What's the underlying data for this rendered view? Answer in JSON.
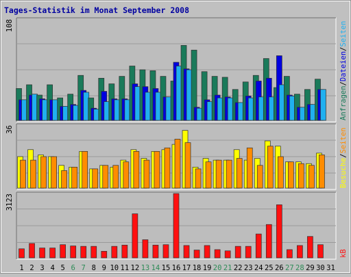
{
  "title": "Tages-Statistik im Monat September 2008",
  "colors": {
    "background": "#c0c0c0",
    "panel": "#bdbdbd",
    "grid": "#9a9a9a",
    "title": "#0000a0",
    "frame": "#808080",
    "anfragen": "#1a7a5a",
    "dateien": "#0000e0",
    "seiten_top": "#20b0f0",
    "besuche": "#ffff00",
    "seiten_mid": "#ff8c00",
    "kb": "#ff1010",
    "weekday_label": "#000000",
    "weekend_label": "#2e8b57"
  },
  "chart_data": {
    "type": "bar",
    "title": "Tages-Statistik im Monat September 2008",
    "categories": [
      "1",
      "2",
      "3",
      "4",
      "5",
      "6",
      "7",
      "8",
      "9",
      "10",
      "11",
      "12",
      "13",
      "14",
      "15",
      "16",
      "17",
      "18",
      "19",
      "20",
      "21",
      "22",
      "23",
      "24",
      "25",
      "26",
      "27",
      "28",
      "29",
      "30",
      "31"
    ],
    "weekend_days": [
      "6",
      "7",
      "13",
      "14",
      "20",
      "21",
      "27",
      "28"
    ],
    "panels": [
      {
        "ylabel_max": "108",
        "ylim": [
          0,
          108
        ],
        "legend": [
          {
            "label": "Anfragen",
            "color_key": "anfragen"
          },
          {
            "label": "Dateien",
            "color_key": "dateien"
          },
          {
            "label": "Seiten",
            "color_key": "seiten_top"
          }
        ],
        "separators": [
          "/",
          "/"
        ],
        "series": [
          {
            "name": "Anfragen",
            "color_key": "anfragen",
            "values": [
              34,
              38,
              27,
              38,
              24,
              28,
              48,
              24,
              45,
              39,
              47,
              58,
              54,
              53,
              47,
              42,
              80,
              75,
              52,
              47,
              46,
              33,
              41,
              48,
              66,
              35,
              47,
              28,
              33,
              44,
              null
            ]
          },
          {
            "name": "Dateien",
            "color_key": "dateien",
            "values": [
              22,
              27,
              23,
              22,
              15,
              17,
              32,
              13,
              31,
              23,
              23,
              39,
              36,
              34,
              25,
              62,
              55,
              14,
              22,
              27,
              25,
              19,
              26,
              42,
              45,
              69,
              27,
              14,
              17,
              33,
              null
            ]
          },
          {
            "name": "Seiten",
            "color_key": "seiten_top",
            "values": [
              22,
              28,
              22,
              22,
              15,
              16,
              30,
              12,
              20,
              22,
              22,
              36,
              30,
              30,
              25,
              58,
              54,
              13,
              20,
              24,
              24,
              19,
              24,
              25,
              25,
              38,
              26,
              14,
              17,
              33,
              null
            ]
          }
        ]
      },
      {
        "ylabel_max": "36",
        "ylim": [
          0,
          36
        ],
        "legend": [
          {
            "label": "Besuche",
            "color_key": "besuche"
          },
          {
            "label": "Seiten",
            "color_key": "seiten_mid"
          }
        ],
        "separators": [
          "/"
        ],
        "series": [
          {
            "name": "Besuche",
            "color_key": "besuche",
            "values": [
              18,
              22,
              19,
              18,
              13,
              12,
              21,
              11,
              13,
              12,
              16,
              22,
              17,
              21,
              22,
              25,
              33,
              12,
              17,
              16,
              16,
              22,
              16,
              17,
              27,
              24,
              15,
              15,
              14,
              20,
              null
            ]
          },
          {
            "name": "Seiten",
            "color_key": "seiten_mid",
            "values": [
              16,
              16,
              18,
              18,
              10,
              12,
              21,
              11,
              13,
              13,
              15,
              21,
              16,
              21,
              23,
              28,
              26,
              11,
              15,
              16,
              16,
              17,
              23,
              13,
              24,
              18,
              15,
              14,
              13,
              19,
              null
            ]
          }
        ]
      },
      {
        "ylabel_max": "3123",
        "ylim": [
          0,
          3123
        ],
        "legend": [
          {
            "label": "kB",
            "color_key": "kb"
          }
        ],
        "separators": [],
        "series": [
          {
            "name": "kB",
            "color_key": "kb",
            "values": [
              440,
              700,
              480,
              480,
              640,
              580,
              560,
              560,
              320,
              560,
              620,
              2140,
              880,
              620,
              640,
              3123,
              600,
              380,
              600,
              400,
              340,
              560,
              560,
              1160,
              1620,
              2580,
              400,
              600,
              1040,
              640,
              null
            ]
          }
        ]
      }
    ]
  }
}
